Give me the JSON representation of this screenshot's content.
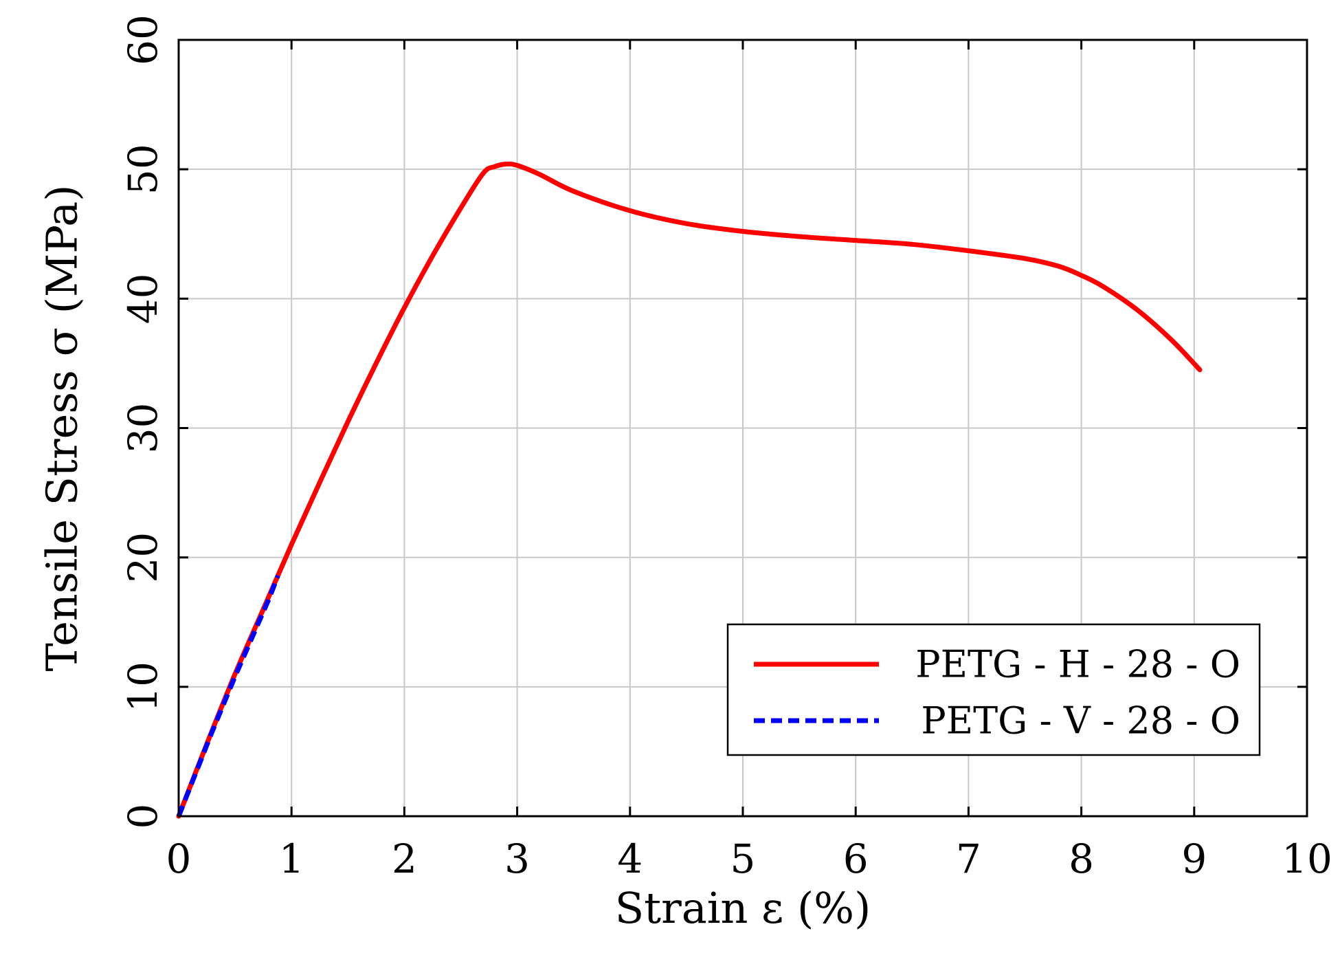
{
  "chart_data": {
    "type": "line",
    "title": "",
    "xlabel": "Strain ε (%)",
    "ylabel": "Tensile Stress σ (MPa)",
    "xlim": [
      0,
      10
    ],
    "ylim": [
      0,
      60
    ],
    "xticks": [
      0,
      1,
      2,
      3,
      4,
      5,
      6,
      7,
      8,
      9,
      10
    ],
    "yticks": [
      0,
      10,
      20,
      30,
      40,
      50,
      60
    ],
    "xtick_labels": [
      "0",
      "1",
      "2",
      "3",
      "4",
      "5",
      "6",
      "7",
      "8",
      "9",
      "10"
    ],
    "ytick_labels": [
      "0",
      "10",
      "20",
      "30",
      "40",
      "50",
      "60"
    ],
    "grid": true,
    "legend_position": "bottom-right",
    "series": [
      {
        "name": "PETG - H - 28 - O",
        "color": "#ff0000",
        "dash": "solid",
        "x": [
          0,
          0.25,
          0.5,
          0.75,
          1.0,
          1.25,
          1.5,
          1.75,
          2.0,
          2.25,
          2.5,
          2.7,
          2.8,
          2.9,
          3.0,
          3.2,
          3.5,
          4.0,
          4.5,
          5.0,
          5.5,
          6.0,
          6.5,
          7.0,
          7.5,
          7.8,
          8.0,
          8.2,
          8.5,
          8.8,
          9.05
        ],
        "y": [
          0,
          5.6,
          11.0,
          16.0,
          21.0,
          25.8,
          30.5,
          35.0,
          39.3,
          43.3,
          47.0,
          49.7,
          50.2,
          50.4,
          50.3,
          49.6,
          48.3,
          46.8,
          45.8,
          45.2,
          44.8,
          44.5,
          44.2,
          43.7,
          43.1,
          42.5,
          41.8,
          40.9,
          39.1,
          36.8,
          34.5
        ]
      },
      {
        "name": "PETG - V - 28 - O",
        "color": "#0000ff",
        "dash": "dashed",
        "x": [
          0,
          0.1,
          0.2,
          0.3,
          0.4,
          0.5,
          0.6,
          0.7,
          0.8,
          0.88
        ],
        "y": [
          0,
          2.2,
          4.4,
          6.6,
          8.7,
          10.8,
          12.8,
          14.8,
          16.8,
          18.6
        ]
      }
    ]
  }
}
